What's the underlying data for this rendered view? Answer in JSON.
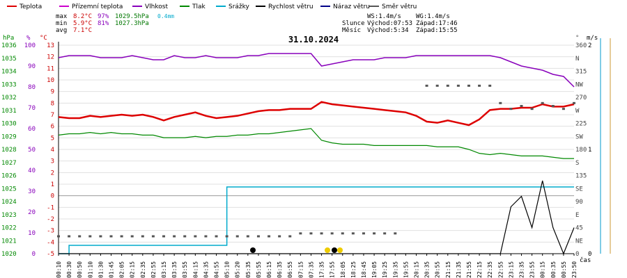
{
  "chart_data": {
    "type": "line",
    "title": "31.10.2024",
    "legend": [
      {
        "label": "Teplota",
        "color": "#dd0000"
      },
      {
        "label": "Přízemní teplota",
        "color": "#cc00cc"
      },
      {
        "label": "Vlhkost",
        "color": "#8800bb"
      },
      {
        "label": "Tlak",
        "color": "#008800"
      },
      {
        "label": "Srážky",
        "color": "#00aacc"
      },
      {
        "label": "Rychlost větru",
        "color": "#000000"
      },
      {
        "label": "Náraz větru",
        "color": "#000088"
      },
      {
        "label": "Směr větru",
        "color": "#555555"
      }
    ],
    "stats": {
      "row_labels": [
        "max",
        "min",
        "avg"
      ],
      "temp": [
        "8.2°C",
        "5.9°C",
        "7.1°C"
      ],
      "hum": [
        "97%",
        "81%",
        ""
      ],
      "press": [
        "1029.5hPa",
        "1027.3hPa",
        ""
      ],
      "rain": [
        "0.4mm",
        "",
        ""
      ]
    },
    "info": {
      "ws": "WS:1.4m/s",
      "wg": "WG:1.4m/s",
      "slunce_label": "Slunce",
      "slunce_rise": "Východ:07:53",
      "slunce_set": "Západ:17:46",
      "mesic_label": "Měsíc",
      "mesic_rise": "Východ:5:34",
      "mesic_set": "Západ:15:55"
    },
    "axes": {
      "left_units": [
        "hPa",
        "%",
        "°C"
      ],
      "right_units": [
        "°",
        "m/s"
      ],
      "pressure_ticks": [
        "1036",
        "1035",
        "1034",
        "1033",
        "1032",
        "1031",
        "1030",
        "1029",
        "1028",
        "1027",
        "1026",
        "1025",
        "1024",
        "1023",
        "1022",
        "1021",
        "1020"
      ],
      "humidity_ticks": [
        "100",
        "90",
        "80",
        "70",
        "60",
        "50",
        "40",
        "30",
        "20",
        "10",
        "0"
      ],
      "temp_ticks": [
        "13",
        "12",
        "11",
        "10",
        "9",
        "8",
        "7",
        "6",
        "5",
        "4",
        "3",
        "2",
        "1",
        "0",
        "-1",
        "-2",
        "-3",
        "-4",
        "-5"
      ],
      "dir_ticks": [
        "360",
        "N",
        "315",
        "NW",
        "270",
        "W",
        "225",
        "SW",
        "180",
        "S",
        "135",
        "SE",
        "90",
        "E",
        "45",
        "NE",
        "0"
      ],
      "wind_ticks": [
        "2",
        "1",
        "0"
      ],
      "xlabel": "čas",
      "time_labels": [
        "00:10",
        "00:30",
        "00:50",
        "01:10",
        "01:30",
        "01:45",
        "02:05",
        "02:15",
        "02:35",
        "02:55",
        "03:15",
        "03:35",
        "03:55",
        "04:15",
        "04:35",
        "04:55",
        "05:10",
        "05:20",
        "05:35",
        "05:55",
        "06:15",
        "06:35",
        "06:55",
        "07:15",
        "07:35",
        "17:35",
        "17:55",
        "18:05",
        "18:25",
        "18:45",
        "19:05",
        "19:25",
        "19:35",
        "19:55",
        "20:15",
        "20:35",
        "20:55",
        "21:15",
        "21:35",
        "21:55",
        "22:15",
        "22:35",
        "22:55",
        "23:15",
        "23:35",
        "23:55",
        "00:15",
        "00:35",
        "00:55",
        "23:50"
      ],
      "ylim_temp": [
        -5,
        13
      ],
      "ylim_humidity": [
        0,
        100
      ],
      "ylim_pressure": [
        1020,
        1036
      ]
    },
    "series": [
      {
        "name": "Teplota",
        "unit": "°C",
        "color": "#dd0000",
        "values": [
          6.8,
          6.7,
          6.7,
          6.9,
          6.8,
          6.9,
          7.0,
          6.9,
          7.0,
          6.8,
          6.5,
          6.8,
          7.0,
          7.2,
          6.9,
          6.7,
          6.8,
          6.9,
          7.1,
          7.3,
          7.4,
          7.4,
          7.5,
          7.5,
          7.5,
          8.1,
          7.9,
          7.8,
          7.7,
          7.6,
          7.5,
          7.4,
          7.3,
          7.2,
          6.9,
          6.4,
          6.3,
          6.5,
          6.3,
          6.1,
          6.6,
          7.4,
          7.5,
          7.5,
          7.6,
          7.6,
          7.9,
          7.7,
          7.7,
          7.9
        ]
      },
      {
        "name": "Přízemní teplota",
        "unit": "°C",
        "color": "#cc00cc",
        "values": []
      },
      {
        "name": "Vlhkost",
        "unit": "%",
        "color": "#8800bb",
        "values": [
          94,
          95,
          95,
          95,
          94,
          94,
          94,
          95,
          94,
          93,
          93,
          95,
          94,
          94,
          95,
          94,
          94,
          94,
          95,
          95,
          96,
          96,
          96,
          96,
          96,
          90,
          91,
          92,
          93,
          93,
          93,
          94,
          94,
          94,
          95,
          95,
          95,
          95,
          95,
          95,
          95,
          95,
          94,
          92,
          90,
          89,
          88,
          86,
          85,
          80
        ]
      },
      {
        "name": "Tlak",
        "unit": "hPa",
        "color": "#008800",
        "values": [
          1029.1,
          1029.2,
          1029.2,
          1029.3,
          1029.2,
          1029.3,
          1029.2,
          1029.2,
          1029.1,
          1029.1,
          1028.9,
          1028.9,
          1028.9,
          1029.0,
          1028.9,
          1029.0,
          1029.0,
          1029.1,
          1029.1,
          1029.2,
          1029.2,
          1029.3,
          1029.4,
          1029.5,
          1029.6,
          1028.7,
          1028.5,
          1028.4,
          1028.4,
          1028.4,
          1028.3,
          1028.3,
          1028.3,
          1028.3,
          1028.3,
          1028.3,
          1028.2,
          1028.2,
          1028.2,
          1028.0,
          1027.7,
          1027.6,
          1027.7,
          1027.6,
          1027.5,
          1027.5,
          1027.5,
          1027.4,
          1027.3,
          1027.3
        ]
      },
      {
        "name": "Srážky",
        "unit": "mm",
        "color": "#00aacc",
        "values": [
          0,
          0.05,
          0.05,
          0.05,
          0.05,
          0.05,
          0.05,
          0.05,
          0.05,
          0.05,
          0.05,
          0.05,
          0.05,
          0.05,
          0.05,
          0.05,
          0.4,
          0.4,
          0.4,
          0.4,
          0.4,
          0.4,
          0.4,
          0.4,
          0.4,
          0.4,
          0.4,
          0.4,
          0.4,
          0.4,
          0.4,
          0.4,
          0.4,
          0.4,
          0.4,
          0.4,
          0.4,
          0.4,
          0.4,
          0.4,
          0.4,
          0.4,
          0.4,
          0.4,
          0.4,
          0.4,
          0.4,
          0.4,
          0.4,
          0.4
        ]
      },
      {
        "name": "Rychlost větru",
        "unit": "m/s",
        "color": "#000000",
        "values": [
          0,
          0,
          0,
          0,
          0,
          0,
          0,
          0,
          0,
          0,
          0,
          0,
          0,
          0,
          0,
          0,
          0,
          0,
          0,
          0,
          0,
          0,
          0,
          0,
          0,
          0,
          0,
          0,
          0,
          0,
          0,
          0,
          0,
          0,
          0,
          0,
          0,
          0,
          0,
          0,
          0,
          0,
          0,
          0.9,
          1.1,
          0.5,
          1.4,
          0.5,
          0,
          0.5
        ]
      },
      {
        "name": "Náraz větru",
        "unit": "m/s",
        "color": "#000088",
        "values": []
      },
      {
        "name": "Směr větru",
        "unit": "°",
        "color": "#555555",
        "values": [
          30,
          30,
          30,
          30,
          30,
          30,
          30,
          30,
          30,
          30,
          30,
          30,
          30,
          30,
          30,
          30,
          30,
          30,
          30,
          30,
          30,
          30,
          30,
          35,
          35,
          35,
          35,
          35,
          35,
          35,
          35,
          35,
          35,
          null,
          null,
          290,
          290,
          290,
          290,
          290,
          290,
          290,
          260,
          250,
          255,
          250,
          260,
          255,
          250,
          260
        ]
      }
    ]
  }
}
